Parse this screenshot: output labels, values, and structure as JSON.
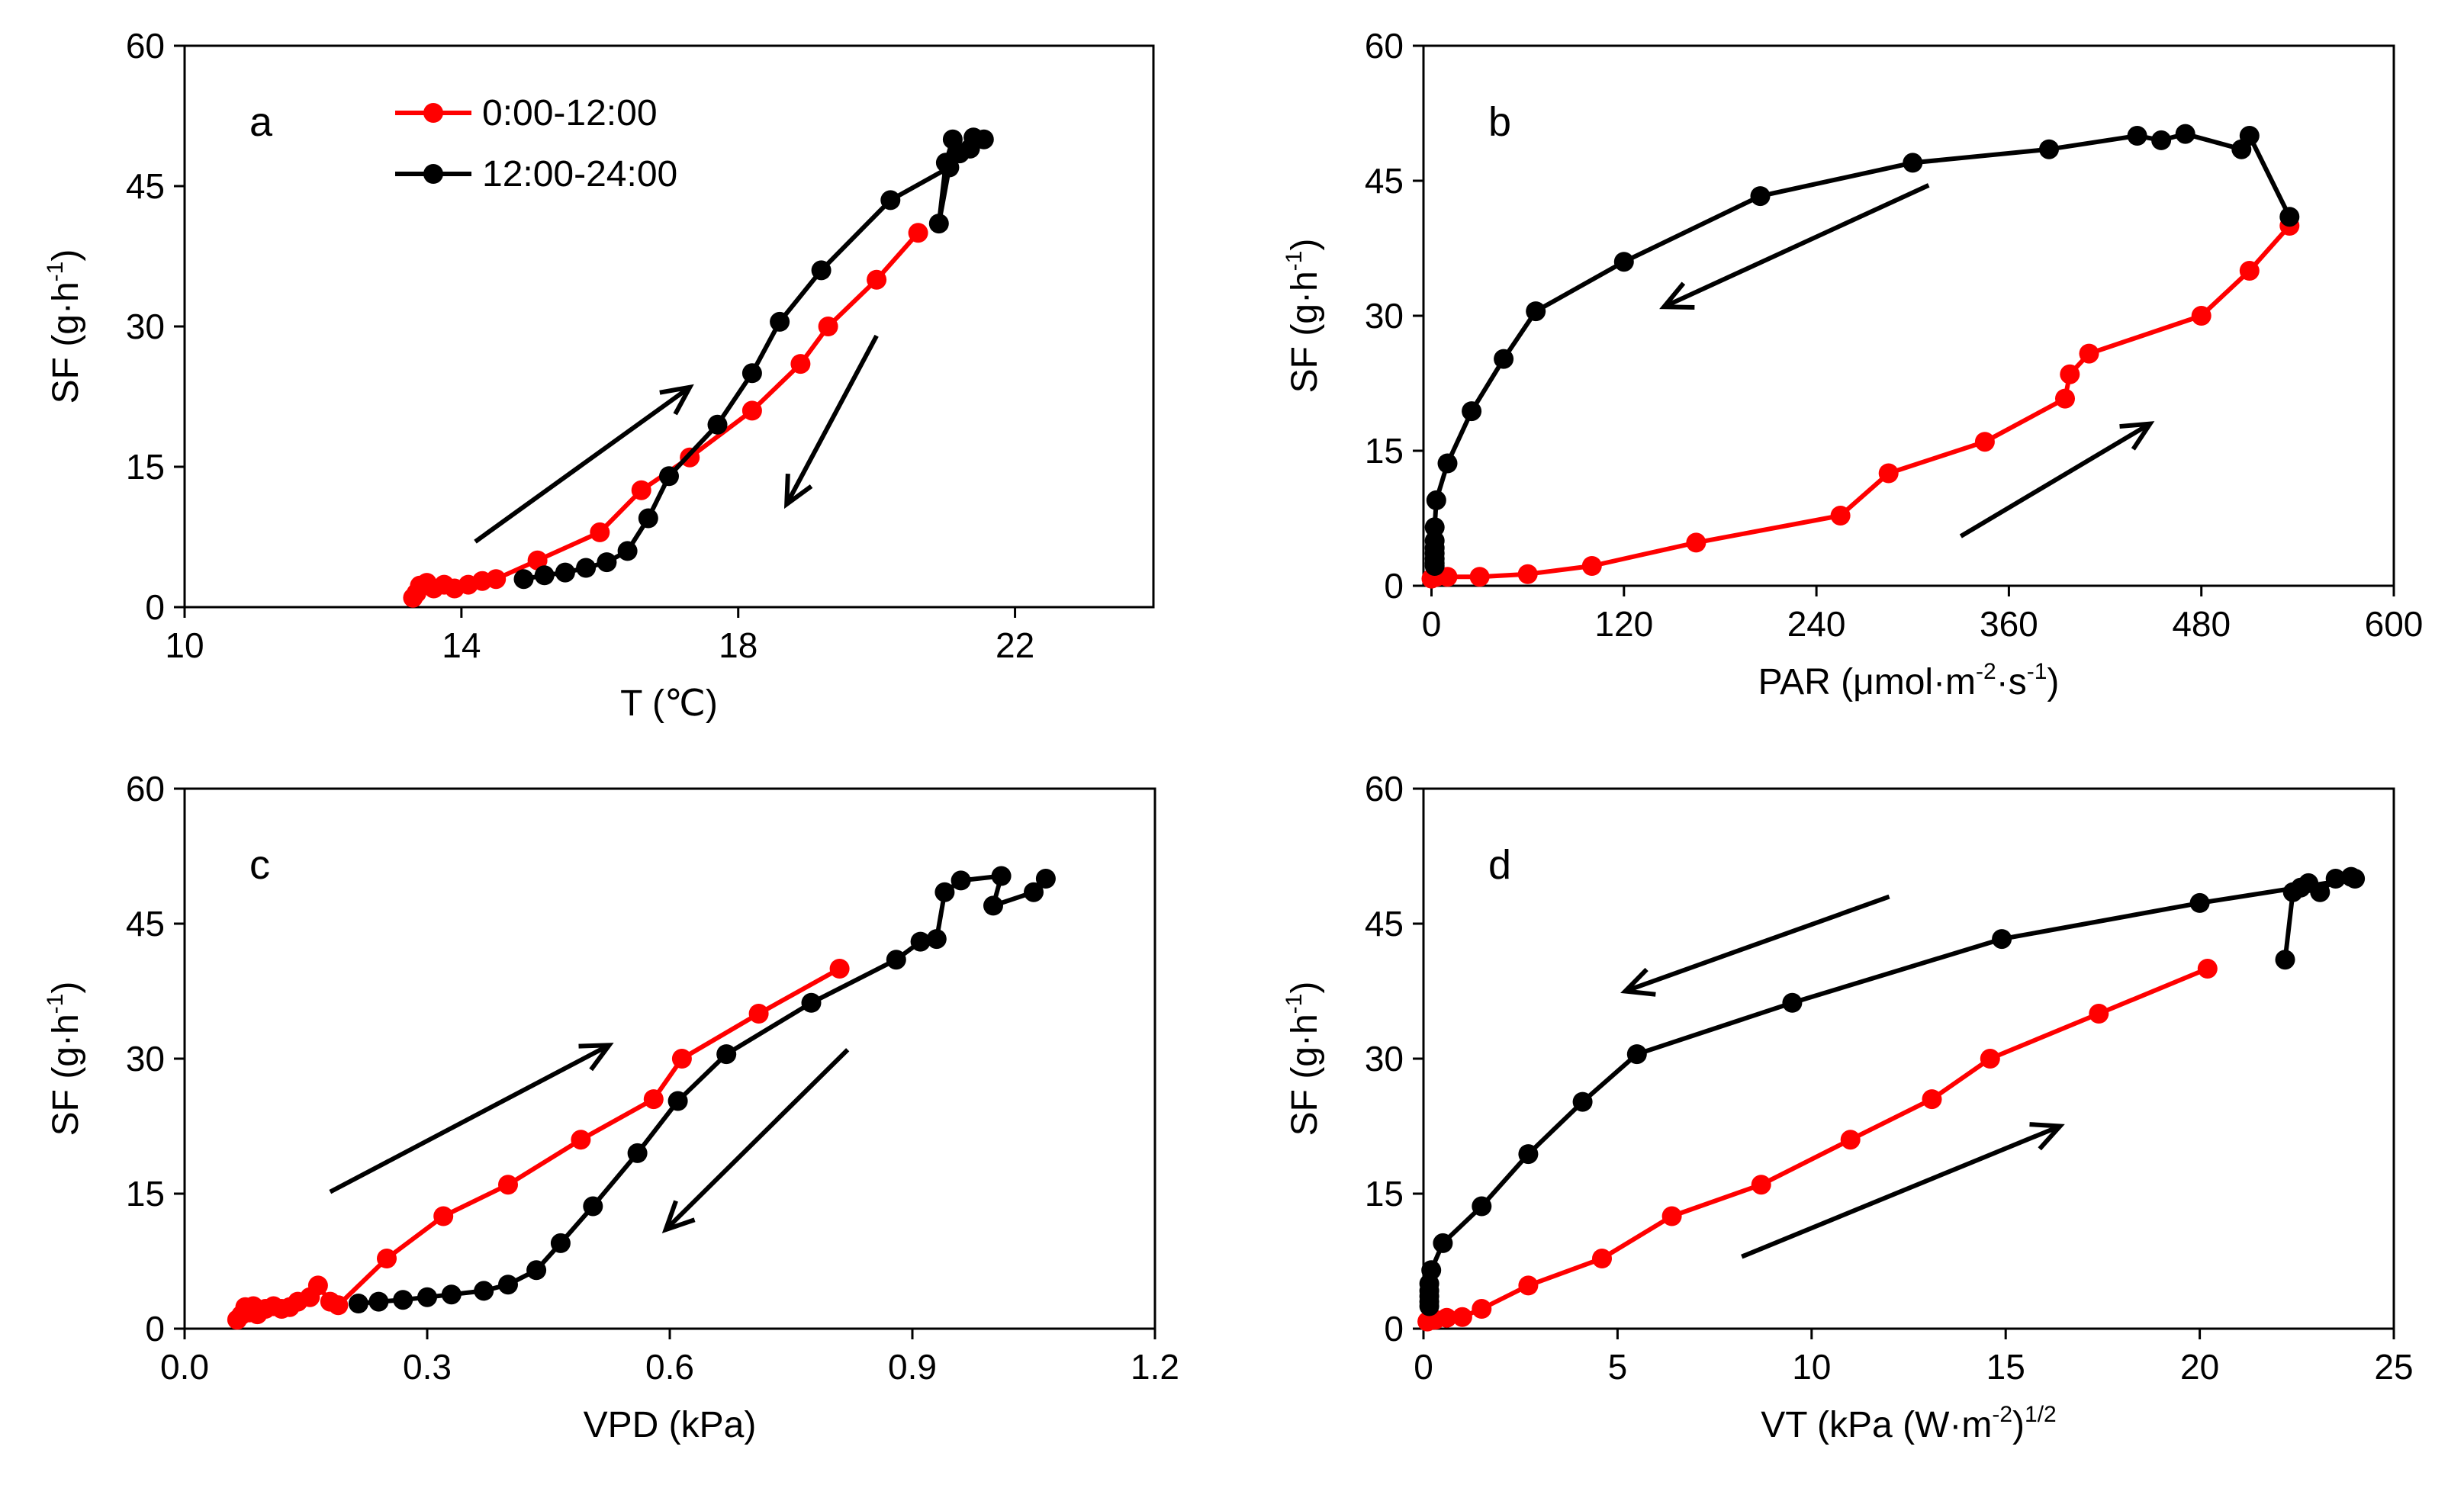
{
  "colors": {
    "red": "#ff0000",
    "black": "#000000"
  },
  "legend": [
    {
      "name": "0:00-12:00",
      "color": "red"
    },
    {
      "name": "12:00-24:00",
      "color": "black"
    }
  ],
  "chart_data": [
    {
      "type": "line",
      "panel": "a",
      "ylabel": {
        "base": "SF (g·h",
        "sup": "-1",
        "tail": ")"
      },
      "xlabel": "T (℃)",
      "xlim": [
        10,
        24
      ],
      "ylim": [
        0,
        60
      ],
      "xticks": [
        "10",
        "14",
        "18",
        "22"
      ],
      "yticks": [
        "0",
        "15",
        "30",
        "45",
        "60"
      ],
      "xtick_values": [
        10,
        14,
        18,
        22
      ],
      "ytick_values": [
        0,
        15,
        30,
        45,
        60
      ],
      "series": [
        {
          "name": "0:00-12:00",
          "x": [
            13.3,
            13.35,
            13.4,
            13.5,
            13.6,
            13.75,
            13.9,
            14.1,
            14.3,
            14.5,
            15.1,
            16.0,
            16.6,
            17.3,
            18.2,
            18.9,
            19.3,
            20.0,
            20.6
          ],
          "y": [
            1.0,
            1.5,
            2.3,
            2.6,
            2.0,
            2.4,
            2.0,
            2.4,
            2.8,
            3.0,
            5.0,
            8.0,
            12.5,
            16.0,
            21.0,
            26.0,
            30.0,
            35.0,
            40.0
          ]
        },
        {
          "name": "12:00-24:00",
          "x": [
            21.55,
            21.4,
            21.35,
            21.2,
            21.1,
            21.0,
            20.9,
            21.05,
            20.2,
            19.2,
            18.6,
            18.2,
            17.7,
            17.0,
            16.7,
            16.4,
            16.1,
            15.8,
            15.5,
            15.2,
            14.9
          ],
          "y": [
            50.0,
            50.2,
            49.0,
            48.5,
            50.0,
            47.5,
            41.0,
            47.0,
            43.5,
            36.0,
            30.5,
            25.0,
            19.5,
            14.0,
            9.5,
            6.0,
            4.8,
            4.2,
            3.7,
            3.4,
            3.0
          ]
        }
      ],
      "arrows": [
        {
          "from": [
            14.2,
            7.0
          ],
          "to": [
            17.3,
            23.5
          ]
        },
        {
          "from": [
            20.0,
            29.0
          ],
          "to": [
            18.7,
            11.0
          ]
        }
      ]
    },
    {
      "type": "line",
      "panel": "b",
      "ylabel": {
        "base": "SF (g·h",
        "sup": "-1",
        "tail": ")"
      },
      "xlabel": {
        "base": "PAR (μmol·m",
        "sup1": "-2",
        "mid": "·s",
        "sup2": "-1",
        "tail": ")"
      },
      "xlim": [
        -5,
        600
      ],
      "ylim": [
        0,
        60
      ],
      "xticks": [
        "0",
        "120",
        "240",
        "360",
        "480",
        "600"
      ],
      "yticks": [
        "0",
        "15",
        "30",
        "45",
        "60"
      ],
      "xtick_values": [
        0,
        120,
        240,
        360,
        480,
        600
      ],
      "ytick_values": [
        0,
        15,
        30,
        45,
        60
      ],
      "series": [
        {
          "name": "0:00-12:00",
          "x": [
            0,
            3,
            10,
            30,
            60,
            100,
            165,
            255,
            285,
            345,
            395,
            398,
            410,
            480,
            510,
            535
          ],
          "y": [
            0.8,
            1.0,
            1.0,
            1.0,
            1.3,
            2.2,
            4.8,
            7.8,
            12.5,
            16.0,
            20.8,
            23.5,
            25.8,
            30.0,
            35.0,
            40.0
          ]
        },
        {
          "name": "12:00-24:00",
          "x": [
            535,
            510,
            505,
            470,
            455,
            440,
            385,
            300,
            205,
            120,
            65,
            45,
            25,
            10,
            3,
            2,
            2,
            2,
            2,
            2,
            2,
            2
          ],
          "y": [
            41.0,
            50.0,
            48.5,
            50.2,
            49.5,
            50.0,
            48.5,
            47.0,
            43.3,
            36.0,
            30.5,
            25.2,
            19.4,
            13.6,
            9.5,
            6.5,
            5.0,
            4.2,
            3.6,
            3.0,
            2.5,
            2.2
          ]
        }
      ],
      "arrows": [
        {
          "from": [
            310,
            44.5
          ],
          "to": [
            145,
            31.0
          ]
        },
        {
          "from": [
            330,
            5.5
          ],
          "to": [
            448,
            18.0
          ]
        }
      ]
    },
    {
      "type": "line",
      "panel": "c",
      "ylabel": {
        "base": "SF (g·h",
        "sup": "-1",
        "tail": ")"
      },
      "xlabel": "VPD (kPa)",
      "xlim": [
        0,
        1.2
      ],
      "ylim": [
        0,
        60
      ],
      "xticks": [
        "0.0",
        "0.3",
        "0.6",
        "0.9",
        "1.2"
      ],
      "yticks": [
        "0",
        "15",
        "30",
        "45",
        "60"
      ],
      "xtick_values": [
        0,
        0.3,
        0.6,
        0.9,
        1.2
      ],
      "ytick_values": [
        0,
        15,
        30,
        45,
        60
      ],
      "series": [
        {
          "name": "0:00-12:00",
          "x": [
            0.065,
            0.07,
            0.075,
            0.08,
            0.085,
            0.09,
            0.1,
            0.11,
            0.12,
            0.13,
            0.14,
            0.155,
            0.165,
            0.18,
            0.19,
            0.25,
            0.32,
            0.4,
            0.49,
            0.58,
            0.615,
            0.71,
            0.81
          ],
          "y": [
            1.0,
            1.5,
            2.4,
            1.8,
            2.5,
            1.6,
            2.2,
            2.5,
            2.2,
            2.4,
            3.0,
            3.5,
            4.8,
            3.0,
            2.6,
            7.8,
            12.5,
            16.0,
            21.0,
            25.5,
            30.0,
            35.0,
            40.0
          ]
        },
        {
          "name": "12:00-24:00",
          "x": [
            1.065,
            1.05,
            1.0,
            1.01,
            0.96,
            0.94,
            0.93,
            0.91,
            0.88,
            0.775,
            0.67,
            0.61,
            0.56,
            0.505,
            0.465,
            0.435,
            0.4,
            0.37,
            0.33,
            0.3,
            0.27,
            0.24,
            0.215
          ],
          "y": [
            50.0,
            48.5,
            47.0,
            50.3,
            49.8,
            48.5,
            43.3,
            43.0,
            41.0,
            36.2,
            30.5,
            25.3,
            19.5,
            13.6,
            9.5,
            6.5,
            4.9,
            4.2,
            3.8,
            3.5,
            3.2,
            3.0,
            2.8
          ]
        }
      ],
      "arrows": [
        {
          "from": [
            0.18,
            15.2
          ],
          "to": [
            0.525,
            31.5
          ]
        },
        {
          "from": [
            0.82,
            31.0
          ],
          "to": [
            0.595,
            11.0
          ]
        }
      ]
    },
    {
      "type": "line",
      "panel": "d",
      "ylabel": {
        "base": "SF (g·h",
        "sup": "-1",
        "tail": ")"
      },
      "xlabel": {
        "base": "VT (kPa (W·m",
        "sup1": "-2",
        "mid": ")",
        "sup2": "1/2",
        "tail": ""
      },
      "xlim": [
        0,
        25
      ],
      "ylim": [
        0,
        60
      ],
      "xticks": [
        "0",
        "5",
        "10",
        "15",
        "20",
        "25"
      ],
      "yticks": [
        "0",
        "15",
        "30",
        "45",
        "60"
      ],
      "xtick_values": [
        0,
        5,
        10,
        15,
        20,
        25
      ],
      "ytick_values": [
        0,
        15,
        30,
        45,
        60
      ],
      "series": [
        {
          "name": "0:00-12:00",
          "x": [
            0.1,
            0.3,
            0.6,
            1.0,
            1.5,
            2.7,
            4.6,
            6.4,
            8.7,
            11.0,
            13.1,
            14.6,
            17.4,
            20.2
          ],
          "y": [
            0.8,
            1.0,
            1.2,
            1.3,
            2.2,
            4.8,
            7.8,
            12.5,
            16.0,
            21.0,
            25.5,
            30.0,
            35.0,
            40.0
          ]
        },
        {
          "name": "12:00-24:00",
          "x": [
            22.2,
            22.4,
            22.6,
            22.8,
            23.1,
            23.5,
            23.9,
            24.0,
            20.0,
            14.9,
            9.5,
            5.5,
            4.1,
            2.7,
            1.5,
            0.5,
            0.2,
            0.15,
            0.15,
            0.15,
            0.15,
            0.15
          ],
          "y": [
            41.0,
            48.5,
            49.0,
            49.5,
            48.5,
            50.0,
            50.2,
            50.0,
            47.3,
            43.3,
            36.2,
            30.5,
            25.2,
            19.4,
            13.6,
            9.5,
            6.5,
            5.0,
            4.2,
            3.6,
            3.0,
            2.5
          ]
        }
      ],
      "arrows": [
        {
          "from": [
            12.0,
            48.0
          ],
          "to": [
            5.2,
            37.5
          ]
        },
        {
          "from": [
            8.2,
            8.0
          ],
          "to": [
            16.4,
            22.5
          ]
        }
      ]
    }
  ]
}
